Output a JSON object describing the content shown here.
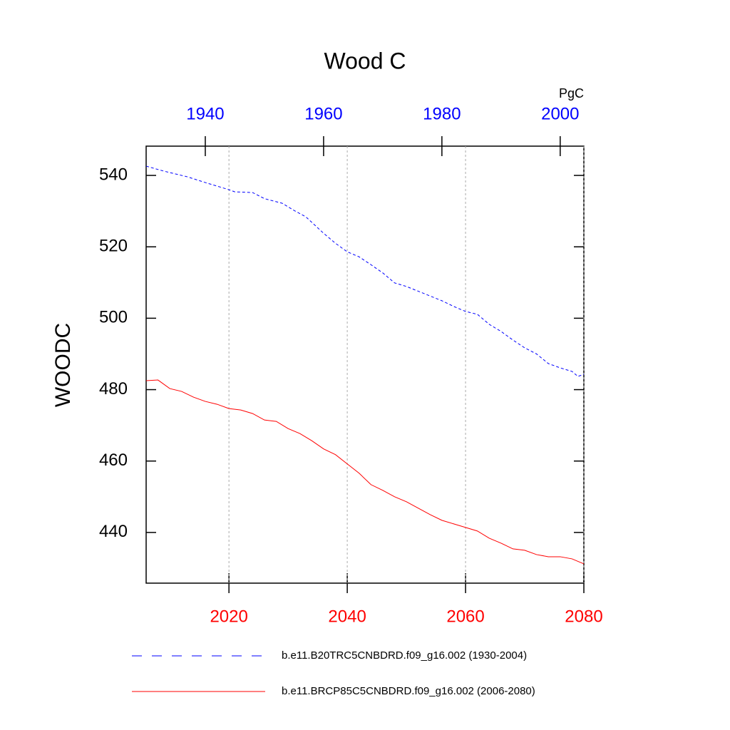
{
  "chart_data": {
    "type": "line",
    "title": "Wood C",
    "units": "PgC",
    "ylabel": "WOODC",
    "ylim": [
      425.8,
      548.2
    ],
    "yticks": [
      440,
      460,
      480,
      500,
      520,
      540
    ],
    "xlim": [
      2006,
      2080
    ],
    "xticks": [
      2020,
      2040,
      2060,
      2080
    ],
    "x2lim": [
      1930,
      2004
    ],
    "x2ticks": [
      1940,
      1960,
      1980,
      2000
    ],
    "grid": true,
    "series": [
      {
        "name": "b.e11.B20TRC5CNBDRD.f09_g16.002 (1930-2004)",
        "color": "#0000ff",
        "linestyle": "dashed",
        "axis": "x2",
        "x": [
          1930,
          1933,
          1937,
          1940,
          1944,
          1945,
          1948,
          1950,
          1953,
          1955,
          1957,
          1960,
          1962,
          1964,
          1966,
          1968,
          1970,
          1972,
          1974,
          1977,
          1980,
          1982,
          1984,
          1986,
          1988,
          1990,
          1992,
          1994,
          1996,
          1998,
          2000,
          2002,
          2003,
          2004
        ],
        "values": [
          542.6,
          541.2,
          539.6,
          538,
          536,
          535.4,
          535.2,
          533.5,
          532.2,
          530.2,
          528.4,
          523.8,
          521,
          518.6,
          517.2,
          515,
          512.7,
          509.9,
          508.9,
          506.9,
          504.9,
          503.3,
          501.9,
          501.1,
          498.3,
          496.3,
          493.9,
          491.7,
          490,
          487.3,
          486.1,
          485.1,
          483.7,
          484.3
        ]
      },
      {
        "name": "b.e11.BRCP85C5CNBDRD.f09_g16.002 (2006-2080)",
        "color": "#ff0000",
        "linestyle": "solid",
        "x": [
          2006,
          2008,
          2010,
          2012,
          2014,
          2016,
          2018,
          2020,
          2022,
          2024,
          2026,
          2028,
          2030,
          2032,
          2034,
          2036,
          2038,
          2040,
          2042,
          2044,
          2046,
          2048,
          2050,
          2052,
          2054,
          2056,
          2058,
          2060,
          2062,
          2064,
          2066,
          2068,
          2070,
          2072,
          2074,
          2076,
          2078,
          2080
        ],
        "values": [
          482.5,
          482.7,
          480.3,
          479.5,
          477.9,
          476.7,
          475.9,
          474.7,
          474.3,
          473.3,
          471.5,
          471.1,
          469.1,
          467.7,
          465.7,
          463.4,
          461.8,
          459.2,
          456.6,
          453.4,
          451.8,
          450,
          448.6,
          446.8,
          445,
          443.4,
          442.4,
          441.4,
          440.4,
          438.4,
          437,
          435.4,
          435,
          433.8,
          433.2,
          433.2,
          432.6,
          431.2
        ]
      }
    ]
  }
}
